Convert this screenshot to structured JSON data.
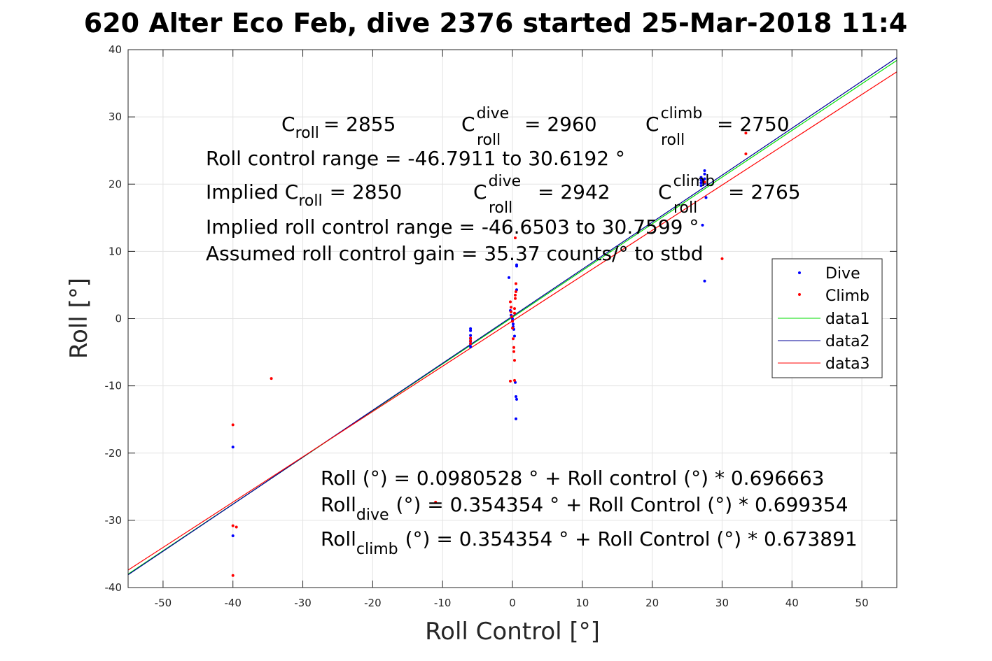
{
  "chart_data": {
    "type": "scatter",
    "title": "620 Alter Eco Feb, dive 2376 started 25-Mar-2018 11:4",
    "xlabel": "Roll Control [°]",
    "ylabel": "Roll [°]",
    "xlim": [
      -55,
      55
    ],
    "ylim": [
      -40,
      40
    ],
    "xticks": [
      -50,
      -40,
      -30,
      -20,
      -10,
      0,
      10,
      20,
      30,
      40,
      50
    ],
    "yticks": [
      -40,
      -30,
      -20,
      -10,
      0,
      10,
      20,
      30,
      40
    ],
    "grid": true,
    "legend_position": "right",
    "series": [
      {
        "name": "Dive",
        "kind": "points",
        "color": "#0000ff",
        "points": [
          [
            -40,
            -19.1
          ],
          [
            -40,
            -32.3
          ],
          [
            -6,
            -1.5
          ],
          [
            -6,
            -1.8
          ],
          [
            -6,
            -2.5
          ],
          [
            -6,
            -3.0
          ],
          [
            -6,
            -3.4
          ],
          [
            -6,
            -3.8
          ],
          [
            -6,
            -4.2
          ],
          [
            -0.5,
            6.1
          ],
          [
            -0.3,
            1.2
          ],
          [
            -0.2,
            0.5
          ],
          [
            0,
            0
          ],
          [
            0,
            -0.3
          ],
          [
            0.1,
            -0.8
          ],
          [
            0.1,
            -1.2
          ],
          [
            0.2,
            -1.6
          ],
          [
            0.3,
            -2.6
          ],
          [
            0.4,
            -9.5
          ],
          [
            0.5,
            -11.6
          ],
          [
            0.6,
            -12.0
          ],
          [
            0.5,
            -14.9
          ],
          [
            0.6,
            7.8
          ],
          [
            0.6,
            8.0
          ],
          [
            0.6,
            4.3
          ],
          [
            27,
            21.0
          ],
          [
            27,
            20.6
          ],
          [
            27,
            20.2
          ],
          [
            27,
            19.8
          ],
          [
            27.3,
            20.5
          ],
          [
            27.5,
            20.1
          ],
          [
            27.5,
            22.0
          ],
          [
            27.5,
            21.5
          ],
          [
            27.5,
            20.8
          ],
          [
            27.7,
            18.0
          ],
          [
            27.2,
            13.9
          ],
          [
            27.5,
            5.6
          ]
        ]
      },
      {
        "name": "Climb",
        "kind": "points",
        "color": "#ff0000",
        "points": [
          [
            -34.5,
            -8.9
          ],
          [
            -40,
            -15.8
          ],
          [
            -40,
            -30.8
          ],
          [
            -39.5,
            -31.0
          ],
          [
            -40,
            -38.2
          ],
          [
            -11,
            -27.3
          ],
          [
            -6,
            -2.9
          ],
          [
            -6,
            -3.3
          ],
          [
            -6,
            -3.7
          ],
          [
            -0.3,
            -9.3
          ],
          [
            -0.3,
            2.5
          ],
          [
            -0.2,
            1.7
          ],
          [
            -0.2,
            1.0
          ],
          [
            -0.1,
            0.3
          ],
          [
            0,
            -0.4
          ],
          [
            0,
            -1.4
          ],
          [
            0.1,
            -3.0
          ],
          [
            0.2,
            -4.3
          ],
          [
            0.2,
            -4.9
          ],
          [
            0.3,
            -6.2
          ],
          [
            0.3,
            -9.2
          ],
          [
            0.3,
            1.5
          ],
          [
            0.4,
            3.0
          ],
          [
            0.4,
            3.5
          ],
          [
            0.4,
            12.0
          ],
          [
            0.5,
            5.2
          ],
          [
            0.5,
            4.0
          ],
          [
            0.3,
            0.8
          ],
          [
            27.5,
            20.3
          ],
          [
            30,
            8.9
          ],
          [
            33.4,
            27.6
          ],
          [
            33.4,
            24.5
          ]
        ]
      },
      {
        "name": "data1",
        "kind": "line",
        "color": "#00dd00",
        "points": [
          [
            -55,
            -38.0
          ],
          [
            55,
            38.4
          ]
        ]
      },
      {
        "name": "data2",
        "kind": "line",
        "color": "#000099",
        "points": [
          [
            -55,
            -38.1
          ],
          [
            55,
            38.8
          ]
        ]
      },
      {
        "name": "data3",
        "kind": "line",
        "color": "#ff0000",
        "points": [
          [
            -55,
            -37.4
          ],
          [
            55,
            36.7
          ]
        ]
      }
    ],
    "annotations_top": {
      "c_roll": "= 2855",
      "c_roll_dive": "= 2960",
      "c_roll_climb": "= 2750",
      "range": "Roll control range = -46.7911 to 30.6192 °",
      "implied_prefix": "Implied C",
      "implied_c_roll": "= 2850",
      "implied_c_roll_dive": "= 2942",
      "implied_c_roll_climb": "= 2765",
      "implied_range": "Implied roll control range = -46.6503 to 30.7599 °",
      "gain": "Assumed roll control gain = 35.37 counts/° to stbd"
    },
    "annotations_bottom": {
      "fit_all": "Roll (°) = 0.0980528 ° + Roll control (°) * 0.696663",
      "fit_dive_rest": "(°) = 0.354354 ° + Roll Control (°) * 0.699354",
      "fit_climb_rest": "(°) = 0.354354 ° + Roll Control (°) * 0.673891"
    },
    "sym": {
      "C": "C",
      "roll": "roll",
      "dive": "dive",
      "climb": "climb",
      "Roll": "Roll"
    }
  }
}
